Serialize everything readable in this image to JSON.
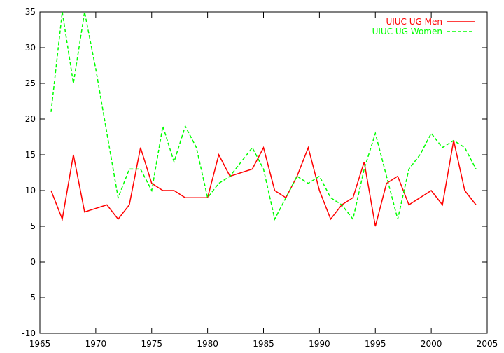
{
  "chart_data": {
    "type": "line",
    "title": "",
    "xlabel": "",
    "ylabel": "",
    "xlim": [
      1965,
      2005
    ],
    "ylim": [
      -10,
      35
    ],
    "xticks": [
      1965,
      1970,
      1975,
      1980,
      1985,
      1990,
      1995,
      2000,
      2005
    ],
    "yticks": [
      -10,
      -5,
      0,
      5,
      10,
      15,
      20,
      25,
      30,
      35
    ],
    "grid": false,
    "legend_position": "top-right",
    "series": [
      {
        "name": "UIUC UG Men",
        "color": "#ff0000",
        "dash": "solid",
        "x": [
          1966,
          1967,
          1968,
          1969,
          1971,
          1972,
          1973,
          1974,
          1975,
          1976,
          1977,
          1978,
          1979,
          1980,
          1981,
          1982,
          1984,
          1985,
          1986,
          1987,
          1988,
          1989,
          1990,
          1991,
          1992,
          1993,
          1994,
          1995,
          1996,
          1997,
          1998,
          2000,
          2001,
          2002,
          2003,
          2004
        ],
        "y": [
          10,
          6,
          15,
          7,
          8,
          6,
          8,
          16,
          11,
          10,
          10,
          9,
          9,
          9,
          15,
          12,
          13,
          16,
          10,
          9,
          12,
          16,
          10,
          6,
          8,
          9,
          14,
          5,
          11,
          12,
          8,
          10,
          8,
          17,
          10,
          8
        ]
      },
      {
        "name": "UIUC UG Women",
        "color": "#00ff00",
        "dash": "dashed",
        "x": [
          1966,
          1967,
          1968,
          1969,
          1970,
          1971,
          1972,
          1973,
          1974,
          1975,
          1976,
          1977,
          1978,
          1979,
          1980,
          1981,
          1982,
          1983,
          1984,
          1985,
          1986,
          1987,
          1988,
          1989,
          1990,
          1991,
          1992,
          1993,
          1994,
          1995,
          1996,
          1997,
          1998,
          1999,
          2000,
          2001,
          2002,
          2003,
          2004
        ],
        "y": [
          21,
          35,
          25,
          35,
          27,
          18,
          9,
          13,
          13,
          10,
          19,
          14,
          19,
          16,
          9,
          11,
          12,
          14,
          16,
          13,
          6,
          9,
          12,
          11,
          12,
          9,
          8,
          6,
          13,
          18,
          12,
          6,
          13,
          15,
          18,
          16,
          17,
          16,
          13
        ]
      }
    ]
  }
}
